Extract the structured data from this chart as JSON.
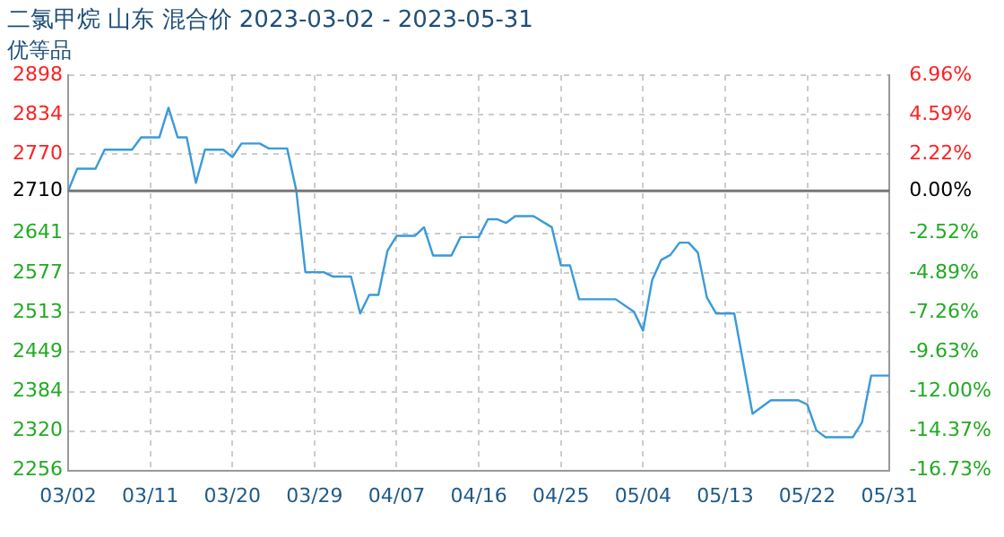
{
  "chart_data": {
    "type": "line",
    "title": "二氯甲烷 山东 混合价 2023-03-02 - 2023-05-31",
    "subtitle": "优等品",
    "x": [
      "2023-03-02",
      "2023-03-03",
      "2023-03-05",
      "2023-03-06",
      "2023-03-09",
      "2023-03-10",
      "2023-03-12",
      "2023-03-13",
      "2023-03-14",
      "2023-03-15",
      "2023-03-16",
      "2023-03-17",
      "2023-03-19",
      "2023-03-20",
      "2023-03-21",
      "2023-03-23",
      "2023-03-24",
      "2023-03-26",
      "2023-03-27",
      "2023-03-28",
      "2023-03-30",
      "2023-03-31",
      "2023-04-02",
      "2023-04-03",
      "2023-04-04",
      "2023-04-05",
      "2023-04-06",
      "2023-04-07",
      "2023-04-09",
      "2023-04-10",
      "2023-04-11",
      "2023-04-13",
      "2023-04-14",
      "2023-04-16",
      "2023-04-17",
      "2023-04-18",
      "2023-04-19",
      "2023-04-20",
      "2023-04-22",
      "2023-04-24",
      "2023-04-25",
      "2023-04-26",
      "2023-04-27",
      "2023-05-01",
      "2023-05-03",
      "2023-05-04",
      "2023-05-05",
      "2023-05-06",
      "2023-05-07",
      "2023-05-08",
      "2023-05-09",
      "2023-05-10",
      "2023-05-11",
      "2023-05-12",
      "2023-05-14",
      "2023-05-16",
      "2023-05-18",
      "2023-05-21",
      "2023-05-22",
      "2023-05-23",
      "2023-05-24",
      "2023-05-27",
      "2023-05-28",
      "2023-05-29",
      "2023-05-31"
    ],
    "series": [
      {
        "color": "#3a9ad9",
        "values": [
          2710,
          2746,
          2746,
          2777,
          2777,
          2797,
          2797,
          2845,
          2797,
          2797,
          2723,
          2777,
          2777,
          2765,
          2787,
          2787,
          2779,
          2779,
          2711,
          2578,
          2578,
          2571,
          2571,
          2511,
          2541,
          2541,
          2613,
          2637,
          2637,
          2651,
          2605,
          2605,
          2635,
          2635,
          2664,
          2664,
          2658,
          2669,
          2669,
          2651,
          2589,
          2589,
          2534,
          2534,
          2514,
          2483,
          2565,
          2598,
          2606,
          2626,
          2626,
          2610,
          2537,
          2511,
          2511,
          2348,
          2370,
          2370,
          2363,
          2321,
          2310,
          2310,
          2334,
          2410,
          2410
        ]
      }
    ],
    "xlim": [
      "2023-03-02",
      "2023-05-31"
    ],
    "xticks": [
      {
        "value": "2023-03-02",
        "label": "03/02"
      },
      {
        "value": "2023-03-11",
        "label": "03/11"
      },
      {
        "value": "2023-03-20",
        "label": "03/20"
      },
      {
        "value": "2023-03-29",
        "label": "03/29"
      },
      {
        "value": "2023-04-07",
        "label": "04/07"
      },
      {
        "value": "2023-04-16",
        "label": "04/16"
      },
      {
        "value": "2023-04-25",
        "label": "04/25"
      },
      {
        "value": "2023-05-04",
        "label": "05/04"
      },
      {
        "value": "2023-05-13",
        "label": "05/13"
      },
      {
        "value": "2023-05-22",
        "label": "05/22"
      },
      {
        "value": "2023-05-31",
        "label": "05/31"
      }
    ],
    "ylim": [
      2256,
      2898
    ],
    "yticks": [
      2256,
      2320,
      2384,
      2449,
      2513,
      2577,
      2641,
      2710,
      2770,
      2834,
      2898
    ],
    "y2lim": [
      -16.73,
      6.96
    ],
    "y2ticks": [
      {
        "value": -16.73,
        "label": "-16.73%"
      },
      {
        "value": -14.37,
        "label": "-14.37%"
      },
      {
        "value": -12,
        "label": "-12.00%"
      },
      {
        "value": -9.63,
        "label": "-9.63%"
      },
      {
        "value": -7.26,
        "label": "-7.26%"
      },
      {
        "value": -4.89,
        "label": "-4.89%"
      },
      {
        "value": -2.52,
        "label": "-2.52%"
      },
      {
        "value": 0,
        "label": "0.00%"
      },
      {
        "value": 2.22,
        "label": "2.22%"
      },
      {
        "value": 4.59,
        "label": "4.59%"
      },
      {
        "value": 6.96,
        "label": "6.96%"
      }
    ],
    "ref_lines": [
      {
        "axis": "y",
        "value": 2710,
        "color": "#777777"
      }
    ],
    "grid": true,
    "legend": false,
    "marker": "none",
    "line_style": "solid"
  }
}
